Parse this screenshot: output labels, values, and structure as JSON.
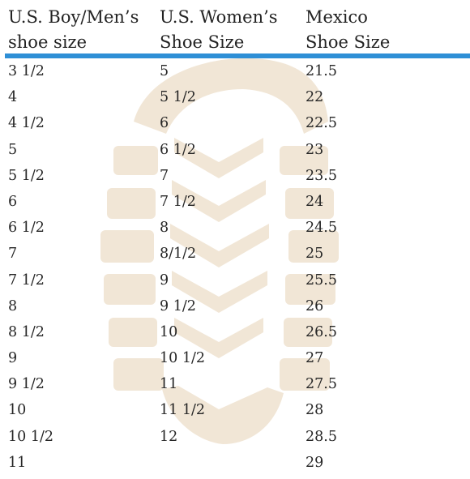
{
  "header": {
    "col1": [
      "U.S. Boy/Men’s",
      "shoe size"
    ],
    "col2": [
      "U.S. Women’s",
      "Shoe Size"
    ],
    "col3": [
      "Mexico",
      "Shoe Size"
    ]
  },
  "colors": {
    "rule": "#2e8fd6",
    "print": "#f1e6d6",
    "text": "#262626"
  },
  "rows": [
    [
      "3 1/2",
      "5",
      "21.5"
    ],
    [
      "4",
      "5 1/2",
      "22"
    ],
    [
      "4 1/2",
      "6",
      "22.5"
    ],
    [
      "5",
      "6 1/2",
      "23"
    ],
    [
      "5 1/2",
      "7",
      "23.5"
    ],
    [
      "6",
      "7 1/2",
      "24"
    ],
    [
      "6 1/2",
      "8",
      "24.5"
    ],
    [
      "7",
      "8/1/2",
      "25"
    ],
    [
      "7 1/2",
      "9",
      "25.5"
    ],
    [
      "8",
      "9 1/2",
      "26"
    ],
    [
      "8 1/2",
      "10",
      "26.5"
    ],
    [
      "9",
      "10 1/2",
      "27"
    ],
    [
      "9 1/2",
      "11",
      "27.5"
    ],
    [
      "10",
      "11 1/2",
      "28"
    ],
    [
      "10 1/2",
      "12",
      "28.5"
    ],
    [
      "11",
      "",
      "29"
    ]
  ]
}
